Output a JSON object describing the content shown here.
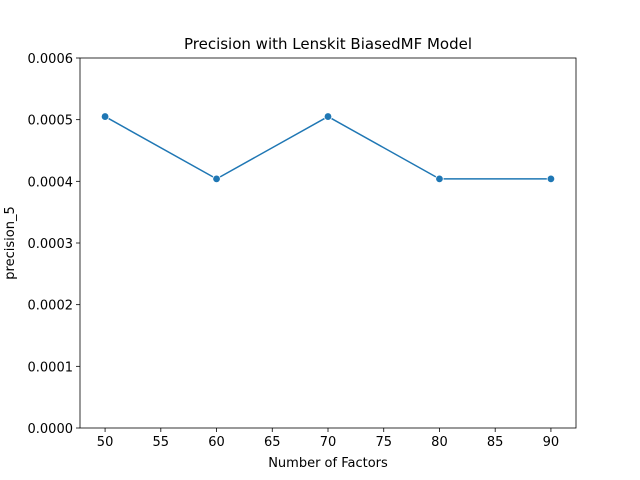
{
  "chart_data": {
    "type": "line",
    "title": "Precision with Lenskit BiasedMF Model",
    "xlabel": "Number of Factors",
    "ylabel": "precision_5",
    "xlim": [
      47.75,
      92.25
    ],
    "ylim": [
      0,
      0.0006
    ],
    "x_ticks": [
      50,
      55,
      60,
      65,
      70,
      75,
      80,
      85,
      90
    ],
    "x_tick_labels": [
      "50",
      "55",
      "60",
      "65",
      "70",
      "75",
      "80",
      "85",
      "90"
    ],
    "y_ticks": [
      0,
      0.0001,
      0.0002,
      0.0003,
      0.0004,
      0.0005,
      0.0006
    ],
    "y_tick_labels": [
      "0.0000",
      "0.0001",
      "0.0002",
      "0.0003",
      "0.0004",
      "0.0005",
      "0.0006"
    ],
    "grid": false,
    "legend": "none",
    "series": [
      {
        "x": [
          50,
          60,
          70,
          80,
          90
        ],
        "y": [
          0.000505,
          0.000404,
          0.000505,
          0.000404,
          0.000404
        ],
        "color": "#1f77b4",
        "marker": "circle"
      }
    ]
  }
}
